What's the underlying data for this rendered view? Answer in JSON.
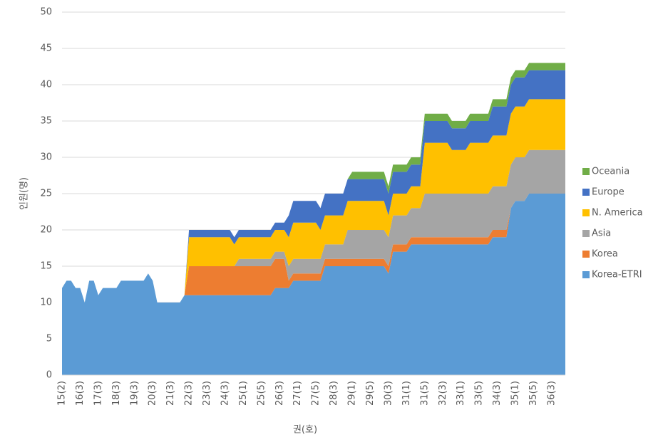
{
  "chart_data": {
    "type": "stacked_area",
    "x_label": "권(호)",
    "y_label": "인원(명)",
    "categories": [
      "15(2)",
      null,
      null,
      null,
      "16(3)",
      null,
      null,
      null,
      "17(3)",
      null,
      null,
      null,
      "18(3)",
      null,
      null,
      null,
      "19(3)",
      null,
      null,
      null,
      "20(3)",
      null,
      null,
      null,
      "21(3)",
      null,
      null,
      null,
      "22(3)",
      null,
      null,
      null,
      "23(3)",
      null,
      null,
      null,
      "24(3)",
      null,
      null,
      null,
      "25(1)",
      null,
      null,
      null,
      "25(5)",
      null,
      null,
      null,
      "26(3)",
      null,
      null,
      null,
      "27(1)",
      null,
      null,
      null,
      "27(5)",
      null,
      null,
      null,
      "28(3)",
      null,
      null,
      null,
      "29(1)",
      null,
      null,
      null,
      "29(5)",
      null,
      null,
      null,
      "30(3)",
      null,
      null,
      null,
      "31(1)",
      null,
      null,
      null,
      "31(5)",
      null,
      null,
      null,
      "32(3)",
      null,
      null,
      null,
      "33(1)",
      null,
      null,
      null,
      "33(5)",
      null,
      null,
      null,
      "34(3)",
      null,
      null,
      null,
      "35(1)",
      null,
      null,
      null,
      "35(5)",
      null,
      null,
      null,
      "36(3)",
      null,
      null,
      null
    ],
    "series": [
      {
        "name": "Korea-ETRI",
        "color": "#5b9bd5",
        "values": [
          12,
          13,
          13,
          12,
          12,
          10,
          13,
          13,
          11,
          12,
          12,
          12,
          12,
          13,
          13,
          13,
          13,
          13,
          13,
          14,
          13,
          10,
          10,
          10,
          10,
          10,
          10,
          11,
          11,
          11,
          11,
          11,
          11,
          11,
          11,
          11,
          11,
          11,
          11,
          11,
          11,
          11,
          11,
          11,
          11,
          11,
          11,
          12,
          12,
          12,
          12,
          13,
          13,
          13,
          13,
          13,
          13,
          13,
          15,
          15,
          15,
          15,
          15,
          15,
          15,
          15,
          15,
          15,
          15,
          15,
          15,
          15,
          14,
          17,
          17,
          17,
          17,
          18,
          18,
          18,
          18,
          18,
          18,
          18,
          18,
          18,
          18,
          18,
          18,
          18,
          18,
          18,
          18,
          18,
          18,
          19,
          19,
          19,
          19,
          23,
          24,
          24,
          24,
          25,
          25,
          25,
          25,
          25,
          25,
          25,
          25,
          25
        ]
      },
      {
        "name": "Korea",
        "color": "#ed7d31",
        "values": [
          0,
          0,
          0,
          0,
          0,
          0,
          0,
          0,
          0,
          0,
          0,
          0,
          0,
          0,
          0,
          0,
          0,
          0,
          0,
          0,
          0,
          0,
          0,
          0,
          0,
          0,
          0,
          0,
          4,
          4,
          4,
          4,
          4,
          4,
          4,
          4,
          4,
          4,
          4,
          4,
          4,
          4,
          4,
          4,
          4,
          4,
          4,
          4,
          4,
          4,
          1,
          1,
          1,
          1,
          1,
          1,
          1,
          1,
          1,
          1,
          1,
          1,
          1,
          1,
          1,
          1,
          1,
          1,
          1,
          1,
          1,
          1,
          1,
          1,
          1,
          1,
          1,
          1,
          1,
          1,
          1,
          1,
          1,
          1,
          1,
          1,
          1,
          1,
          1,
          1,
          1,
          1,
          1,
          1,
          1,
          1,
          1,
          1,
          1,
          0,
          0,
          0,
          0,
          0,
          0,
          0,
          0,
          0,
          0,
          0,
          0,
          0
        ]
      },
      {
        "name": "Asia",
        "color": "#a5a5a5",
        "values": [
          0,
          0,
          0,
          0,
          0,
          0,
          0,
          0,
          0,
          0,
          0,
          0,
          0,
          0,
          0,
          0,
          0,
          0,
          0,
          0,
          0,
          0,
          0,
          0,
          0,
          0,
          0,
          0,
          0,
          0,
          0,
          0,
          0,
          0,
          0,
          0,
          0,
          0,
          0,
          1,
          1,
          1,
          1,
          1,
          1,
          1,
          1,
          1,
          1,
          1,
          2,
          2,
          2,
          2,
          2,
          2,
          2,
          2,
          2,
          2,
          2,
          2,
          2,
          4,
          4,
          4,
          4,
          4,
          4,
          4,
          4,
          4,
          4,
          4,
          4,
          4,
          4,
          4,
          4,
          4,
          6,
          6,
          6,
          6,
          6,
          6,
          6,
          6,
          6,
          6,
          6,
          6,
          6,
          6,
          6,
          6,
          6,
          6,
          6,
          6,
          6,
          6,
          6,
          6,
          6,
          6,
          6,
          6,
          6,
          6,
          6,
          6
        ]
      },
      {
        "name": "N. America",
        "color": "#ffc000",
        "values": [
          0,
          0,
          0,
          0,
          0,
          0,
          0,
          0,
          0,
          0,
          0,
          0,
          0,
          0,
          0,
          0,
          0,
          0,
          0,
          0,
          0,
          0,
          0,
          0,
          0,
          0,
          0,
          0,
          4,
          4,
          4,
          4,
          4,
          4,
          4,
          4,
          4,
          4,
          3,
          3,
          3,
          3,
          3,
          3,
          3,
          3,
          3,
          3,
          3,
          3,
          4,
          5,
          5,
          5,
          5,
          5,
          5,
          4,
          4,
          4,
          4,
          4,
          4,
          4,
          4,
          4,
          4,
          4,
          4,
          4,
          4,
          4,
          3,
          3,
          3,
          3,
          3,
          3,
          3,
          3,
          7,
          7,
          7,
          7,
          7,
          7,
          6,
          6,
          6,
          6,
          7,
          7,
          7,
          7,
          7,
          7,
          7,
          7,
          7,
          7,
          7,
          7,
          7,
          7,
          7,
          7,
          7,
          7,
          7,
          7,
          7,
          7
        ]
      },
      {
        "name": "Europe",
        "color": "#4472c4",
        "values": [
          0,
          0,
          0,
          0,
          0,
          0,
          0,
          0,
          0,
          0,
          0,
          0,
          0,
          0,
          0,
          0,
          0,
          0,
          0,
          0,
          0,
          0,
          0,
          0,
          0,
          0,
          0,
          0,
          1,
          1,
          1,
          1,
          1,
          1,
          1,
          1,
          1,
          1,
          1,
          1,
          1,
          1,
          1,
          1,
          1,
          1,
          1,
          1,
          1,
          1,
          3,
          3,
          3,
          3,
          3,
          3,
          3,
          3,
          3,
          3,
          3,
          3,
          3,
          3,
          3,
          3,
          3,
          3,
          3,
          3,
          3,
          3,
          3,
          3,
          3,
          3,
          3,
          3,
          3,
          3,
          3,
          3,
          3,
          3,
          3,
          3,
          3,
          3,
          3,
          3,
          3,
          3,
          3,
          3,
          3,
          4,
          4,
          4,
          4,
          4,
          4,
          4,
          4,
          4,
          4,
          4,
          4,
          4,
          4,
          4,
          4,
          4
        ]
      },
      {
        "name": "Oceania",
        "color": "#70ad47",
        "values": [
          0,
          0,
          0,
          0,
          0,
          0,
          0,
          0,
          0,
          0,
          0,
          0,
          0,
          0,
          0,
          0,
          0,
          0,
          0,
          0,
          0,
          0,
          0,
          0,
          0,
          0,
          0,
          0,
          0,
          0,
          0,
          0,
          0,
          0,
          0,
          0,
          0,
          0,
          0,
          0,
          0,
          0,
          0,
          0,
          0,
          0,
          0,
          0,
          0,
          0,
          0,
          0,
          0,
          0,
          0,
          0,
          0,
          0,
          0,
          0,
          0,
          0,
          0,
          0,
          1,
          1,
          1,
          1,
          1,
          1,
          1,
          1,
          1,
          1,
          1,
          1,
          1,
          1,
          1,
          1,
          1,
          1,
          1,
          1,
          1,
          1,
          1,
          1,
          1,
          1,
          1,
          1,
          1,
          1,
          1,
          1,
          1,
          1,
          1,
          1,
          1,
          1,
          1,
          1,
          1,
          1,
          1,
          1,
          1,
          1,
          1,
          1
        ]
      }
    ],
    "ylim": [
      0,
      50
    ],
    "yticks": [
      0,
      5,
      10,
      15,
      20,
      25,
      30,
      35,
      40,
      45,
      50
    ],
    "grid": true,
    "legend": "right"
  }
}
